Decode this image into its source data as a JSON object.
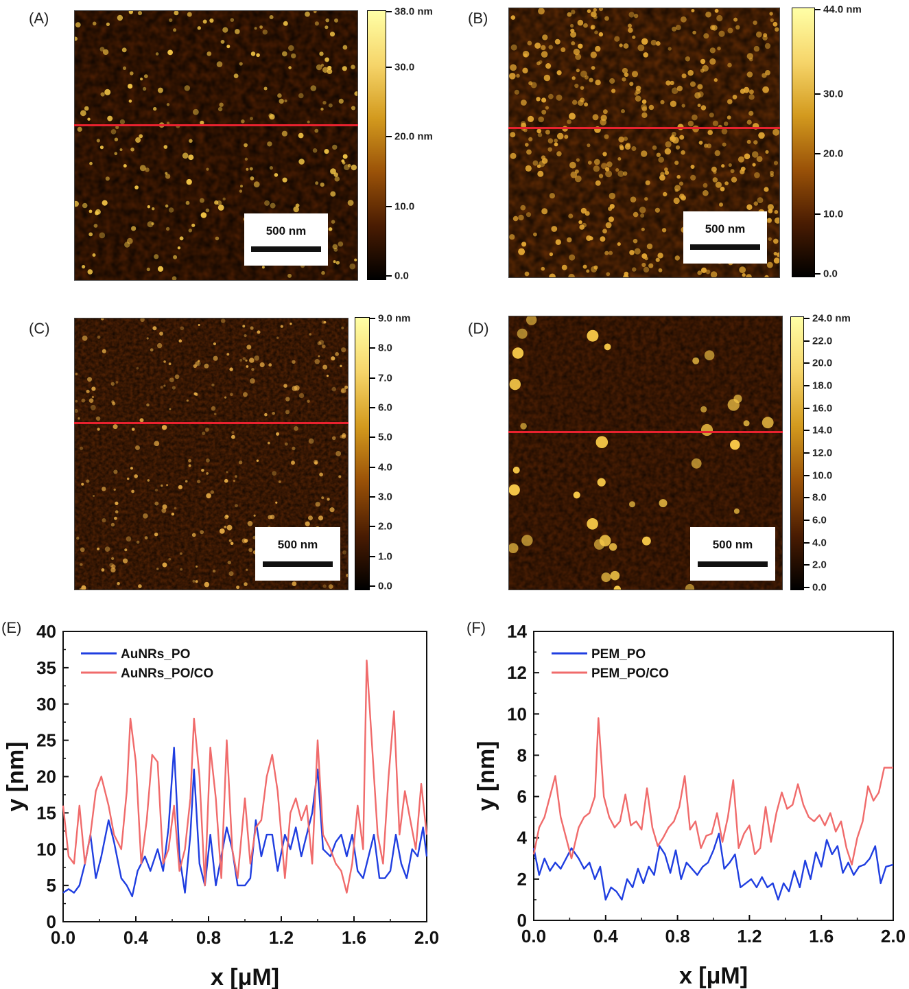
{
  "panels": {
    "A": {
      "letter": "(A)",
      "scale_bar": "500 nm",
      "colorbar_labels": [
        "38.0 nm",
        "30.0",
        "20.0 nm",
        "10.0",
        "0.0"
      ],
      "colorbar_values": [
        38,
        30,
        20,
        10,
        0
      ],
      "colorbar_max": 38
    },
    "B": {
      "letter": "(B)",
      "scale_bar": "500 nm",
      "colorbar_labels": [
        "44.0 nm",
        "30.0",
        "20.0",
        "10.0",
        "0.0"
      ],
      "colorbar_values": [
        44,
        30,
        20,
        10,
        0
      ],
      "colorbar_max": 44
    },
    "C": {
      "letter": "(C)",
      "scale_bar": "500 nm",
      "colorbar_labels": [
        "9.0 nm",
        "8.0",
        "7.0",
        "6.0",
        "5.0",
        "4.0",
        "3.0",
        "2.0",
        "1.0",
        "0.0"
      ],
      "colorbar_values": [
        9,
        8,
        7,
        6,
        5,
        4,
        3,
        2,
        1,
        0
      ],
      "colorbar_max": 9
    },
    "D": {
      "letter": "(D)",
      "scale_bar": "500 nm",
      "colorbar_labels": [
        "24.0 nm",
        "22.0",
        "20.0",
        "18.0",
        "16.0",
        "14.0",
        "12.0",
        "10.0",
        "8.0",
        "6.0",
        "4.0",
        "2.0",
        "0.0"
      ],
      "colorbar_values": [
        24,
        22,
        20,
        18,
        16,
        14,
        12,
        10,
        8,
        6,
        4,
        2,
        0
      ],
      "colorbar_max": 24
    },
    "E": {
      "letter": "(E)"
    },
    "F": {
      "letter": "(F)"
    }
  },
  "colors": {
    "line_marker": "#e8222f",
    "series_blue": "#1f3ee0",
    "series_red": "#f06b6b"
  },
  "chart_data": [
    {
      "type": "line",
      "xlabel": "x [μM]",
      "ylabel": "y [nm]",
      "xlim": [
        0,
        2.0
      ],
      "ylim": [
        0,
        40
      ],
      "xticks": [
        "0.0",
        "0.4",
        "0.8",
        "1.2",
        "1.6",
        "2.0"
      ],
      "yticks": [
        "0",
        "5",
        "10",
        "15",
        "20",
        "25",
        "30",
        "35",
        "40"
      ],
      "legend_position": "top-left",
      "series": [
        {
          "name": "AuNRs_PO",
          "color": "#1f3ee0",
          "x": [
            0.0,
            0.03,
            0.06,
            0.09,
            0.12,
            0.15,
            0.18,
            0.21,
            0.25,
            0.28,
            0.32,
            0.35,
            0.38,
            0.41,
            0.45,
            0.48,
            0.52,
            0.55,
            0.58,
            0.61,
            0.64,
            0.67,
            0.7,
            0.72,
            0.75,
            0.78,
            0.81,
            0.84,
            0.87,
            0.9,
            0.93,
            0.96,
            1.0,
            1.03,
            1.06,
            1.09,
            1.12,
            1.15,
            1.18,
            1.22,
            1.25,
            1.28,
            1.31,
            1.34,
            1.37,
            1.4,
            1.43,
            1.47,
            1.5,
            1.53,
            1.56,
            1.59,
            1.62,
            1.65,
            1.68,
            1.71,
            1.74,
            1.77,
            1.8,
            1.83,
            1.86,
            1.89,
            1.92,
            1.95,
            1.98,
            2.0
          ],
          "y": [
            4,
            4.5,
            4,
            5,
            8,
            12,
            6,
            9,
            14,
            11,
            6,
            5,
            3.5,
            7,
            9,
            7,
            10,
            7,
            13,
            24,
            9,
            4,
            12,
            21,
            8,
            5,
            12,
            5,
            9,
            13,
            10,
            5,
            5,
            6,
            14,
            9,
            12,
            12,
            7,
            12,
            10,
            13,
            9,
            12,
            15,
            21,
            10,
            9,
            11,
            12,
            9,
            12,
            7,
            6,
            9,
            12,
            6,
            6,
            7,
            12,
            8,
            6,
            10,
            9,
            13,
            9
          ]
        },
        {
          "name": "AuNRs_PO/CO",
          "color": "#f06b6b",
          "x": [
            0.0,
            0.03,
            0.06,
            0.09,
            0.12,
            0.15,
            0.18,
            0.21,
            0.25,
            0.28,
            0.32,
            0.35,
            0.37,
            0.4,
            0.43,
            0.46,
            0.49,
            0.52,
            0.55,
            0.58,
            0.61,
            0.64,
            0.67,
            0.7,
            0.72,
            0.75,
            0.78,
            0.81,
            0.84,
            0.87,
            0.9,
            0.93,
            0.96,
            1.0,
            1.03,
            1.06,
            1.09,
            1.12,
            1.15,
            1.18,
            1.22,
            1.25,
            1.28,
            1.31,
            1.34,
            1.37,
            1.4,
            1.43,
            1.47,
            1.5,
            1.53,
            1.56,
            1.59,
            1.62,
            1.65,
            1.67,
            1.7,
            1.73,
            1.76,
            1.79,
            1.82,
            1.85,
            1.88,
            1.91,
            1.94,
            1.97,
            2.0
          ],
          "y": [
            16,
            9,
            8,
            16,
            8,
            12,
            18,
            20,
            16,
            12,
            10,
            18,
            28,
            22,
            8,
            14,
            23,
            22,
            8,
            10,
            16,
            7,
            10,
            17,
            28,
            20,
            5,
            24,
            17,
            6,
            25,
            10,
            6,
            17,
            8,
            13,
            14,
            20,
            23,
            18,
            6,
            15,
            17,
            14,
            16,
            8,
            25,
            12,
            10,
            8,
            7,
            4,
            8,
            16,
            10,
            36,
            24,
            12,
            8,
            20,
            29,
            12,
            18,
            14,
            10,
            19,
            12
          ]
        }
      ]
    },
    {
      "type": "line",
      "xlabel": "x [μM]",
      "ylabel": "y [nm]",
      "xlim": [
        0,
        2.0
      ],
      "ylim": [
        0,
        14
      ],
      "xticks": [
        "0.0",
        "0.4",
        "0.8",
        "1.2",
        "1.6",
        "2.0"
      ],
      "yticks": [
        "0",
        "2",
        "4",
        "6",
        "8",
        "10",
        "12",
        "14"
      ],
      "legend_position": "top-left",
      "series": [
        {
          "name": "PEM_PO",
          "color": "#1f3ee0",
          "x": [
            0.0,
            0.03,
            0.06,
            0.09,
            0.12,
            0.15,
            0.18,
            0.21,
            0.25,
            0.28,
            0.31,
            0.34,
            0.37,
            0.4,
            0.43,
            0.46,
            0.49,
            0.52,
            0.55,
            0.58,
            0.61,
            0.64,
            0.67,
            0.7,
            0.73,
            0.76,
            0.79,
            0.82,
            0.85,
            0.88,
            0.91,
            0.94,
            0.97,
            1.0,
            1.03,
            1.06,
            1.09,
            1.12,
            1.15,
            1.18,
            1.21,
            1.24,
            1.27,
            1.3,
            1.33,
            1.36,
            1.39,
            1.42,
            1.45,
            1.48,
            1.51,
            1.54,
            1.57,
            1.6,
            1.63,
            1.66,
            1.69,
            1.72,
            1.75,
            1.78,
            1.81,
            1.84,
            1.87,
            1.9,
            1.93,
            1.96,
            2.0
          ],
          "y": [
            3.5,
            2.2,
            3,
            2.4,
            2.8,
            2.5,
            3,
            3.5,
            3,
            2.5,
            2.8,
            2,
            2.6,
            1,
            1.6,
            1.4,
            1,
            2,
            1.6,
            2.5,
            1.8,
            2.6,
            2.2,
            3.6,
            3.2,
            2.3,
            3.4,
            2,
            2.8,
            2.5,
            2.2,
            2.6,
            2.8,
            3.4,
            4.2,
            2.5,
            2.8,
            3.2,
            1.6,
            1.8,
            2,
            1.6,
            2.1,
            1.6,
            1.8,
            1,
            1.8,
            1.4,
            2.4,
            1.6,
            2.9,
            2,
            3.3,
            2.6,
            3.9,
            3.2,
            3.6,
            2.3,
            2.8,
            2.2,
            2.6,
            2.7,
            3,
            3.6,
            1.8,
            2.6,
            2.7
          ]
        },
        {
          "name": "PEM_PO/CO",
          "color": "#f06b6b",
          "x": [
            0.0,
            0.03,
            0.06,
            0.09,
            0.12,
            0.15,
            0.18,
            0.21,
            0.25,
            0.28,
            0.31,
            0.34,
            0.36,
            0.39,
            0.42,
            0.45,
            0.48,
            0.51,
            0.54,
            0.57,
            0.6,
            0.63,
            0.66,
            0.69,
            0.72,
            0.75,
            0.78,
            0.81,
            0.84,
            0.87,
            0.9,
            0.93,
            0.96,
            0.99,
            1.02,
            1.05,
            1.08,
            1.11,
            1.14,
            1.17,
            1.2,
            1.23,
            1.26,
            1.29,
            1.32,
            1.35,
            1.38,
            1.41,
            1.44,
            1.47,
            1.5,
            1.53,
            1.56,
            1.59,
            1.62,
            1.65,
            1.68,
            1.71,
            1.74,
            1.77,
            1.8,
            1.83,
            1.86,
            1.89,
            1.92,
            1.95,
            2.0
          ],
          "y": [
            3.2,
            4.5,
            5,
            6,
            7,
            5,
            4,
            3,
            4.5,
            5,
            5.2,
            6,
            9.8,
            6,
            5,
            4.5,
            4.8,
            6.1,
            4.6,
            4.8,
            4.4,
            6.4,
            4.5,
            3.6,
            4,
            4.5,
            4.8,
            5.5,
            7,
            4.4,
            4.8,
            3.5,
            4.1,
            4.2,
            5.2,
            3.8,
            5,
            6.8,
            3.5,
            4.2,
            4.6,
            3.2,
            3.5,
            5.5,
            3.8,
            5.2,
            6.2,
            5.4,
            5.6,
            6.6,
            5.6,
            5,
            4.8,
            5.1,
            4.6,
            5.2,
            4.3,
            4.8,
            3.5,
            2.7,
            4,
            4.8,
            6.5,
            5.8,
            6.2,
            7.4,
            7.4
          ]
        }
      ]
    }
  ]
}
